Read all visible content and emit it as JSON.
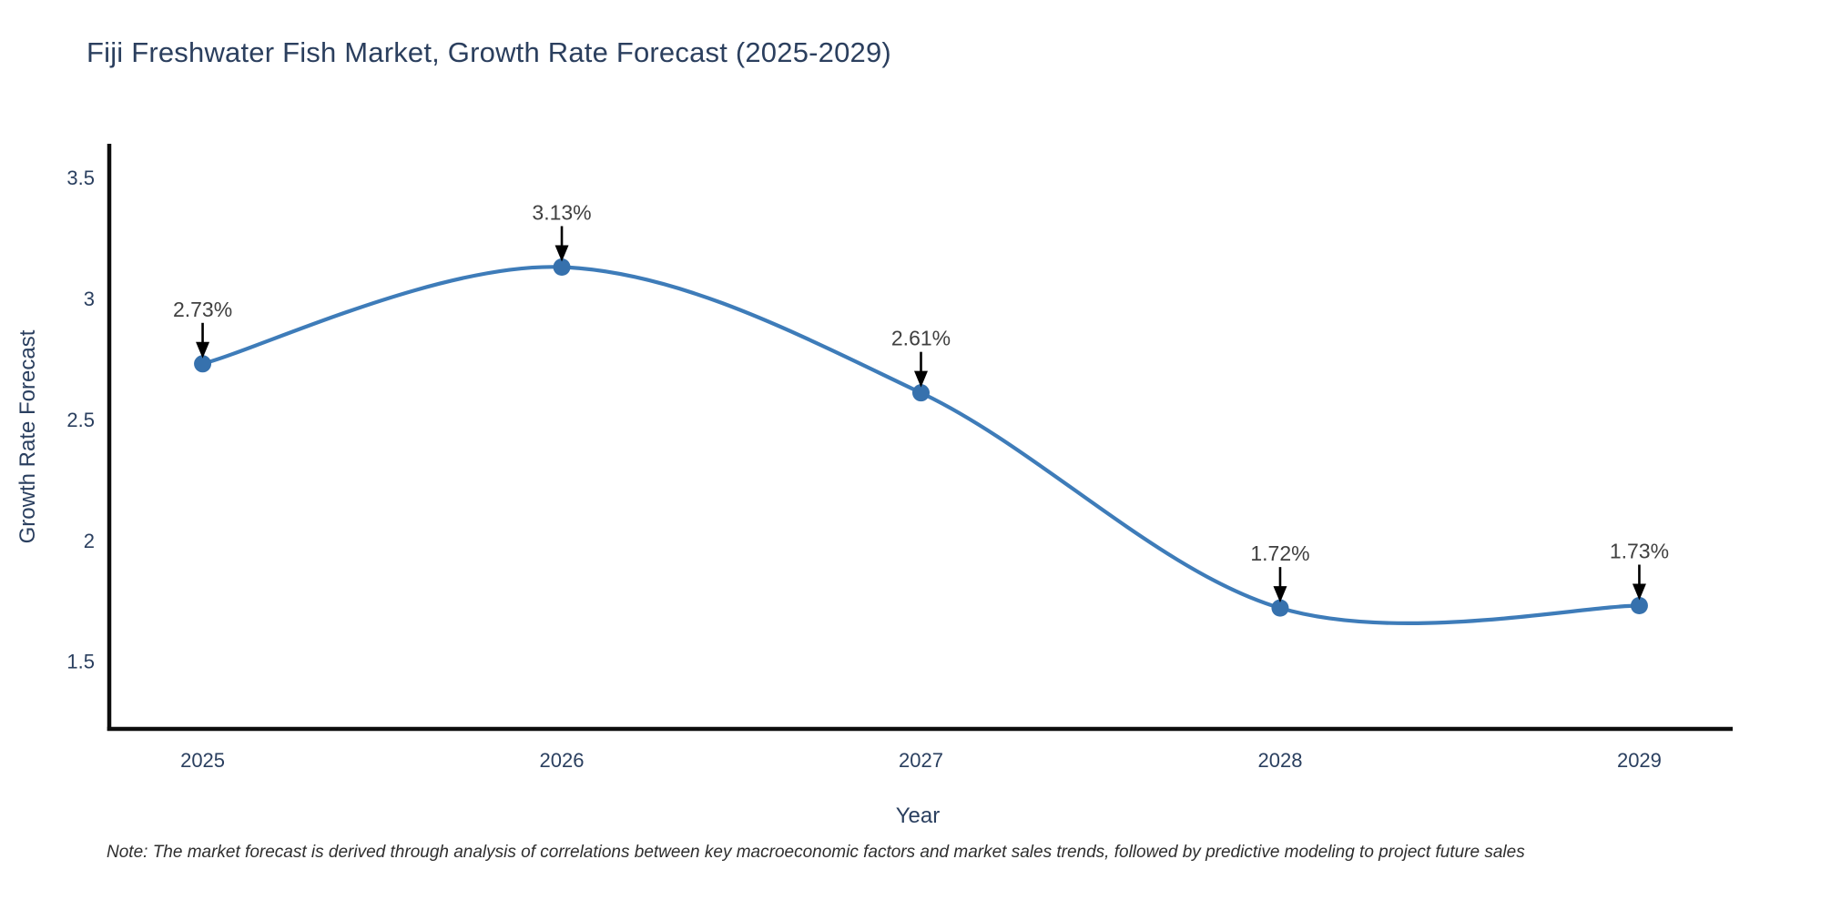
{
  "title": "Fiji Freshwater Fish Market, Growth Rate Forecast (2025-2029)",
  "note": "Note: The market forecast is derived through analysis of correlations between key macroeconomic factors and market sales trends, followed by predictive modeling to project future sales",
  "chart_data": {
    "type": "line",
    "line_shape": "spline",
    "x": [
      2025,
      2026,
      2027,
      2028,
      2029
    ],
    "categories": [
      "2025",
      "2026",
      "2027",
      "2028",
      "2029"
    ],
    "values": [
      2.73,
      3.13,
      2.61,
      1.72,
      1.73
    ],
    "point_labels": [
      "2.73%",
      "3.13%",
      "2.61%",
      "1.72%",
      "1.73%"
    ],
    "title": "Fiji Freshwater Fish Market, Growth Rate Forecast (2025-2029)",
    "xlabel": "Year",
    "ylabel": "Growth Rate Forecast",
    "yticks": [
      3.5,
      3,
      2.5,
      2,
      1.5
    ],
    "ytick_labels": [
      "3.5",
      "3",
      "2.5",
      "2",
      "1.5"
    ],
    "xlim": [
      2024.74,
      2029.26
    ],
    "ylim": [
      1.22,
      3.64
    ],
    "grid": false,
    "legend": false,
    "annotations": "black down-arrows from percentage labels to markers",
    "colors": {
      "line": "#3e7cb9",
      "marker": "#3671ad",
      "axis": "#0d0d0d",
      "text": "#2a3f5f",
      "annotation": "#404040",
      "background": "#ffffff"
    }
  }
}
